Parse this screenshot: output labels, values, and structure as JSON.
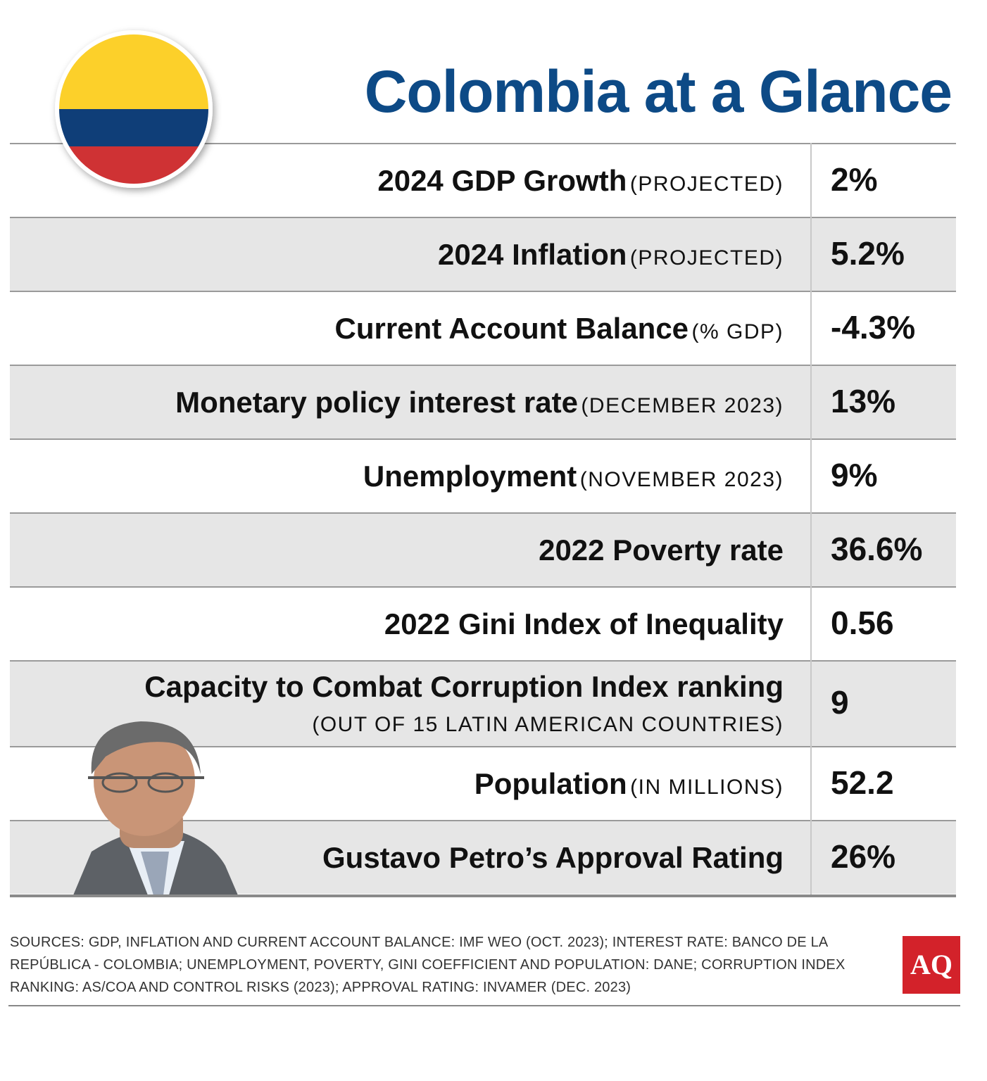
{
  "header": {
    "title": "Colombia at a Glance"
  },
  "table": {
    "rows": [
      {
        "label": "2024 GDP Growth",
        "note": "(PROJECTED)",
        "value": "2%"
      },
      {
        "label": "2024 Inflation",
        "note": "(PROJECTED)",
        "value": "5.2%"
      },
      {
        "label": "Current Account Balance",
        "note": "(% GDP)",
        "value": "-4.3%"
      },
      {
        "label": "Monetary policy interest rate",
        "note": "(DECEMBER 2023)",
        "value": "13%"
      },
      {
        "label": "Unemployment",
        "note": "(NOVEMBER 2023)",
        "value": "9%"
      },
      {
        "label": "2022 Poverty rate",
        "value": "36.6%"
      },
      {
        "label": "2022 Gini Index of Inequality",
        "value": "0.56"
      },
      {
        "label": "Capacity to Combat Corruption Index ranking",
        "note": "(OUT OF 15 LATIN AMERICAN COUNTRIES)",
        "value": "9"
      },
      {
        "label": "Population",
        "note": "(IN MILLIONS)",
        "value": "52.2"
      },
      {
        "label": "Gustavo Petro’s Approval Rating",
        "value": "26%"
      }
    ]
  },
  "footer": {
    "sources": [
      "SOURCES: GDP, INFLATION AND CURRENT ACCOUNT BALANCE: IMF WEO (OCT. 2023); INTEREST RATE: BANCO DE LA",
      "REPÚBLICA - COLOMBIA; UNEMPLOYMENT, POVERTY, GINI COEFFICIENT AND POPULATION: DANE; CORRUPTION INDEX",
      "RANKING: AS/COA AND CONTROL RISKS (2023);  APPROVAL RATING: INVAMER (DEC. 2023)"
    ],
    "logo": "AQ"
  }
}
